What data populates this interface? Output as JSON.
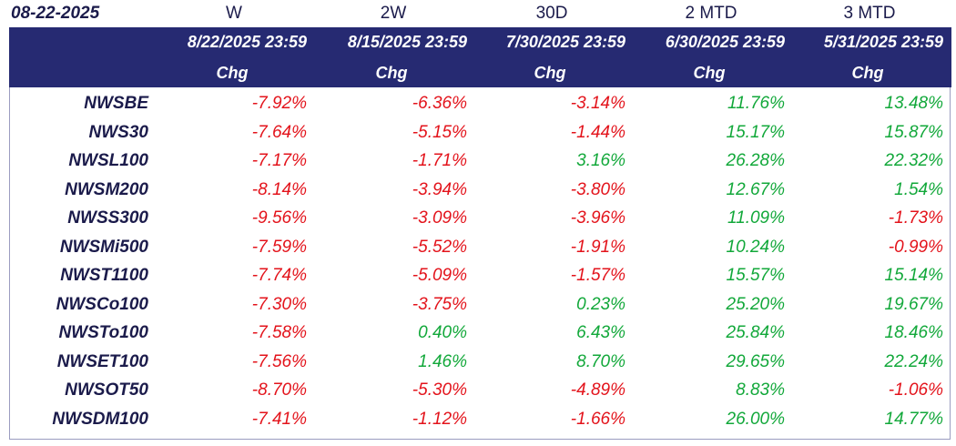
{
  "date_label": "08-22-2025",
  "periods": [
    "W",
    "2W",
    "30D",
    "2 MTD",
    "3 MTD"
  ],
  "header_dates": [
    "8/22/2025 23:59",
    "8/15/2025 23:59",
    "7/30/2025 23:59",
    "6/30/2025 23:59",
    "5/31/2025 23:59"
  ],
  "header_chg": [
    "Chg",
    "Chg",
    "Chg",
    "Chg",
    "Chg"
  ],
  "colors": {
    "header_bg": "#262a72",
    "negative": "#e3131b",
    "positive": "#12a83a",
    "name_text": "#1b1b4b"
  },
  "rows": [
    {
      "name": "NWSBE",
      "values": [
        "-7.92%",
        "-6.36%",
        "-3.14%",
        "11.76%",
        "13.48%"
      ]
    },
    {
      "name": "NWS30",
      "values": [
        "-7.64%",
        "-5.15%",
        "-1.44%",
        "15.17%",
        "15.87%"
      ]
    },
    {
      "name": "NWSL100",
      "values": [
        "-7.17%",
        "-1.71%",
        "3.16%",
        "26.28%",
        "22.32%"
      ]
    },
    {
      "name": "NWSM200",
      "values": [
        "-8.14%",
        "-3.94%",
        "-3.80%",
        "12.67%",
        "1.54%"
      ]
    },
    {
      "name": "NWSS300",
      "values": [
        "-9.56%",
        "-3.09%",
        "-3.96%",
        "11.09%",
        "-1.73%"
      ]
    },
    {
      "name": "NWSMi500",
      "values": [
        "-7.59%",
        "-5.52%",
        "-1.91%",
        "10.24%",
        "-0.99%"
      ]
    },
    {
      "name": "NWST1100",
      "values": [
        "-7.74%",
        "-5.09%",
        "-1.57%",
        "15.57%",
        "15.14%"
      ]
    },
    {
      "name": "NWSCo100",
      "values": [
        "-7.30%",
        "-3.75%",
        "0.23%",
        "25.20%",
        "19.67%"
      ]
    },
    {
      "name": "NWSTo100",
      "values": [
        "-7.58%",
        "0.40%",
        "6.43%",
        "25.84%",
        "18.46%"
      ]
    },
    {
      "name": "NWSET100",
      "values": [
        "-7.56%",
        "1.46%",
        "8.70%",
        "29.65%",
        "22.24%"
      ]
    },
    {
      "name": "NWSOT50",
      "values": [
        "-8.70%",
        "-5.30%",
        "-4.89%",
        "8.83%",
        "-1.06%"
      ]
    },
    {
      "name": "NWSDM100",
      "values": [
        "-7.41%",
        "-1.12%",
        "-1.66%",
        "26.00%",
        "14.77%"
      ]
    }
  ]
}
